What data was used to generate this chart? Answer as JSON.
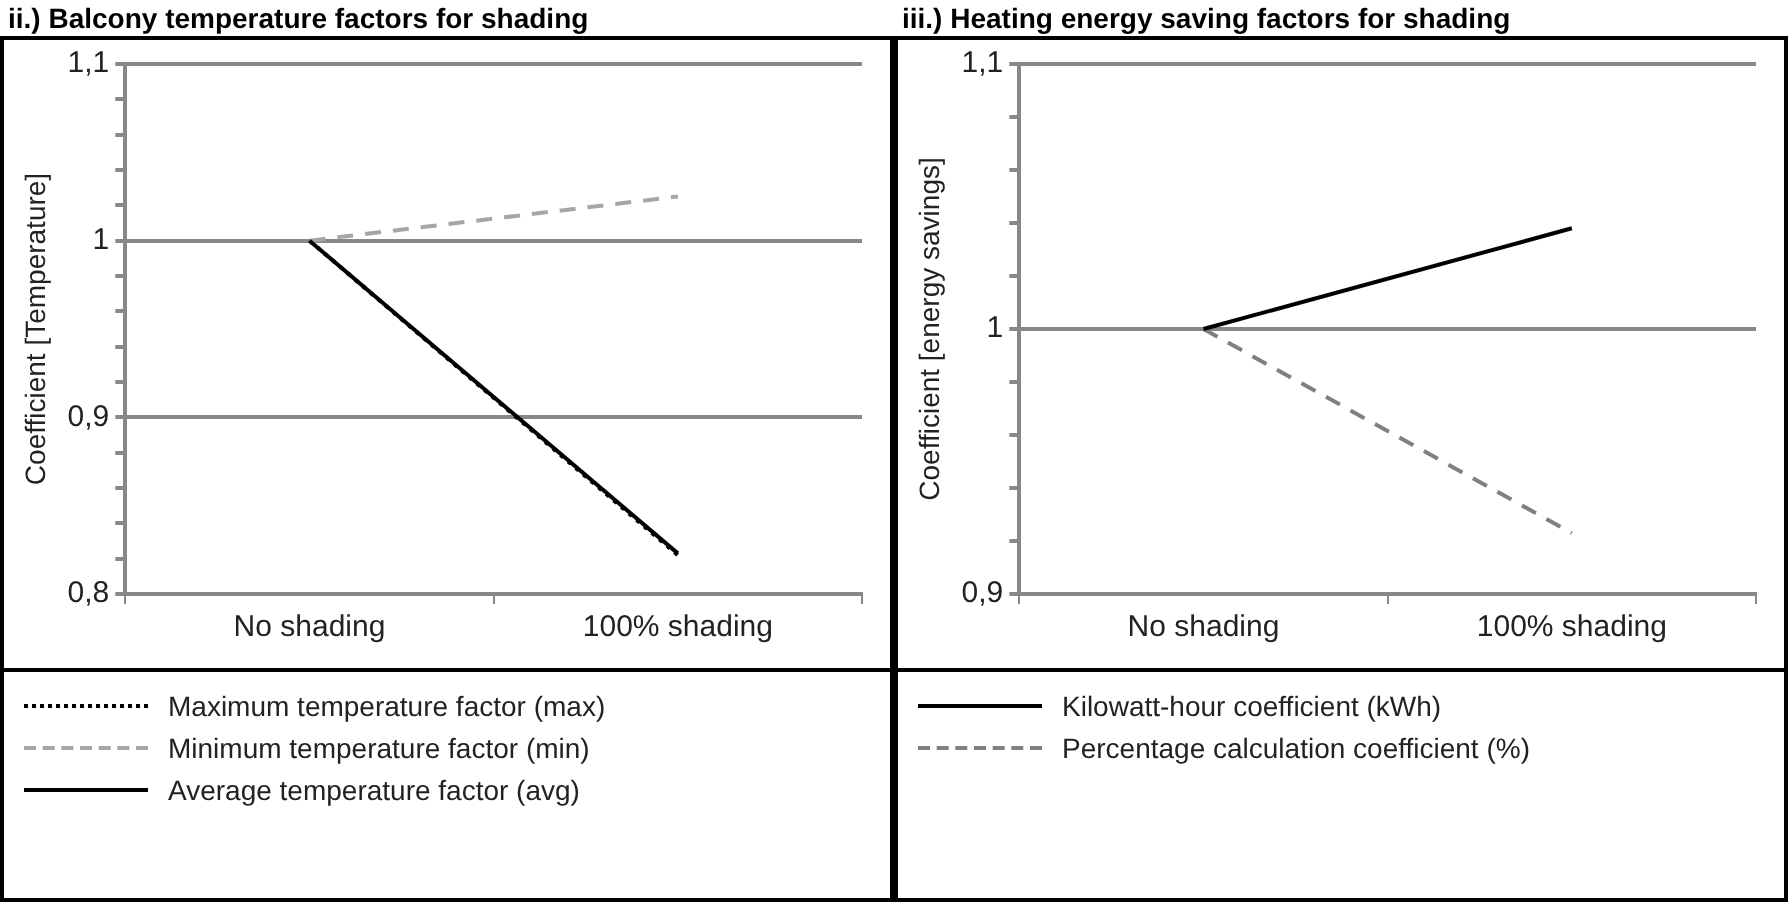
{
  "chart_data": [
    {
      "type": "line",
      "title": "ii.) Balcony temperature factors for shading",
      "ylabel": "Coefficient [Temperature]",
      "categories": [
        "No shading",
        "100% shading"
      ],
      "series": [
        {
          "name": "Maximum temperature factor (max)",
          "color": "#000000",
          "line_style": "dotted",
          "values": [
            1,
            0.822
          ]
        },
        {
          "name": "Minimum temperature factor (min)",
          "color": "#a6a6a6",
          "line_style": "dashed",
          "values": [
            1,
            1.025
          ]
        },
        {
          "name": "Average temperature factor (avg)",
          "color": "#000000",
          "line_style": "solid",
          "values": [
            1,
            0.823
          ]
        }
      ],
      "ylim": [
        0.8,
        1.1
      ],
      "yticks": [
        {
          "value": 0.8,
          "label": "0,8"
        },
        {
          "value": 0.82,
          "label": null
        },
        {
          "value": 0.84,
          "label": null
        },
        {
          "value": 0.86,
          "label": null
        },
        {
          "value": 0.88,
          "label": null
        },
        {
          "value": 0.9,
          "label": "0,9"
        },
        {
          "value": 0.92,
          "label": null
        },
        {
          "value": 0.94,
          "label": null
        },
        {
          "value": 0.96,
          "label": null
        },
        {
          "value": 0.98,
          "label": null
        },
        1,
        {
          "value": 1.02,
          "label": null
        },
        {
          "value": 1.04,
          "label": null
        },
        {
          "value": 1.06,
          "label": null
        },
        {
          "value": 1.08,
          "label": null
        },
        {
          "value": 1.1,
          "label": "1,1"
        }
      ],
      "grid": "y",
      "legend": "bottom"
    },
    {
      "type": "line",
      "title": "iii.) Heating energy saving factors for shading",
      "ylabel": "Coefficient [energy savings]",
      "categories": [
        "No shading",
        "100% shading"
      ],
      "series": [
        {
          "name": "Kilowatt-hour coefficient (kWh)",
          "color": "#000000",
          "line_style": "solid",
          "values": [
            1,
            1.038
          ]
        },
        {
          "name": "Percentage calculation coefficient (%)",
          "color": "#808080",
          "line_style": "dashed",
          "values": [
            1,
            0.923
          ]
        }
      ],
      "ylim": [
        0.9,
        1.1
      ],
      "yticks": [
        {
          "value": 0.9,
          "label": "0,9"
        },
        {
          "value": 0.92,
          "label": null
        },
        {
          "value": 0.94,
          "label": null
        },
        {
          "value": 0.96,
          "label": null
        },
        {
          "value": 0.98,
          "label": null
        },
        1,
        {
          "value": 1.02,
          "label": null
        },
        {
          "value": 1.04,
          "label": null
        },
        {
          "value": 1.06,
          "label": null
        },
        {
          "value": 1.08,
          "label": null
        },
        {
          "value": 1.1,
          "label": "1,1"
        }
      ],
      "grid": "y",
      "legend": "bottom"
    }
  ]
}
